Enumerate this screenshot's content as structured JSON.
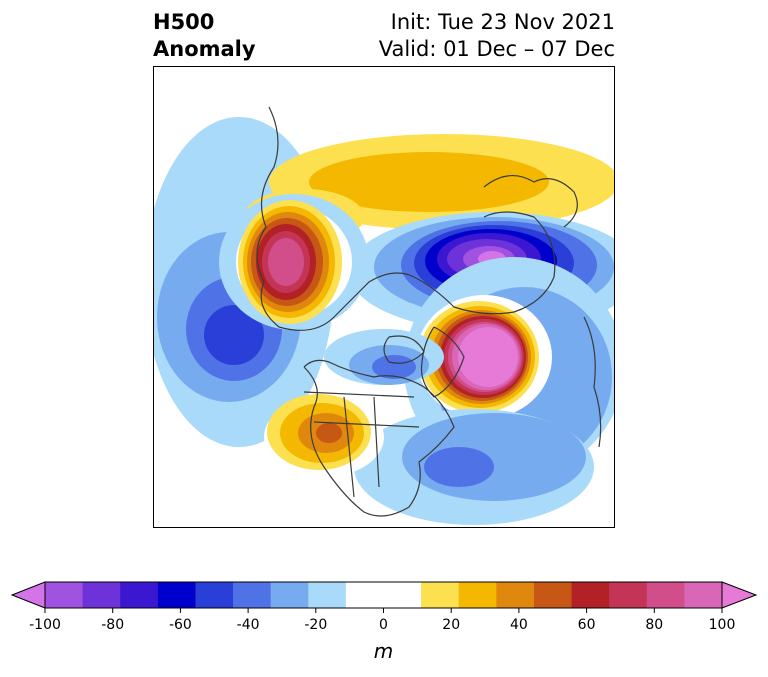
{
  "title": {
    "left_line1": "H500",
    "left_line2": "Anomaly",
    "init": "Init: Tue 23 Nov 2021",
    "valid": "Valid: 01 Dec – 07 Dec"
  },
  "map": {
    "projection": "north-polar-stereographic",
    "anomalies": [
      {
        "name": "positive anomaly near Alaska",
        "peak": 70
      },
      {
        "name": "negative anomaly over Siberia",
        "peak": -95
      },
      {
        "name": "positive anomaly over Scandinavia",
        "peak": 100
      },
      {
        "name": "positive anomaly over western US",
        "peak": 40
      },
      {
        "name": "ridge over Arctic Ocean",
        "peak": 20
      },
      {
        "name": "negative anomaly eastern Atlantic",
        "peak": -40
      },
      {
        "name": "negative anomaly North Pacific",
        "peak": -50
      }
    ]
  },
  "colorbar": {
    "ticks": [
      "-100",
      "-80",
      "-60",
      "-40",
      "-20",
      "0",
      "20",
      "40",
      "60",
      "80",
      "100"
    ],
    "unit": "m",
    "colors": [
      "#d374e8",
      "#a052e0",
      "#6e33d8",
      "#3b17d2",
      "#0000cc",
      "#2a3fd8",
      "#4f73e6",
      "#76abf0",
      "#a9daf9",
      "#ffffff",
      "#ffffff",
      "#fce050",
      "#f4b800",
      "#e0880d",
      "#c65715",
      "#b22125",
      "#c43457",
      "#d24e8a",
      "#d966b6",
      "#e77ad6"
    ]
  }
}
